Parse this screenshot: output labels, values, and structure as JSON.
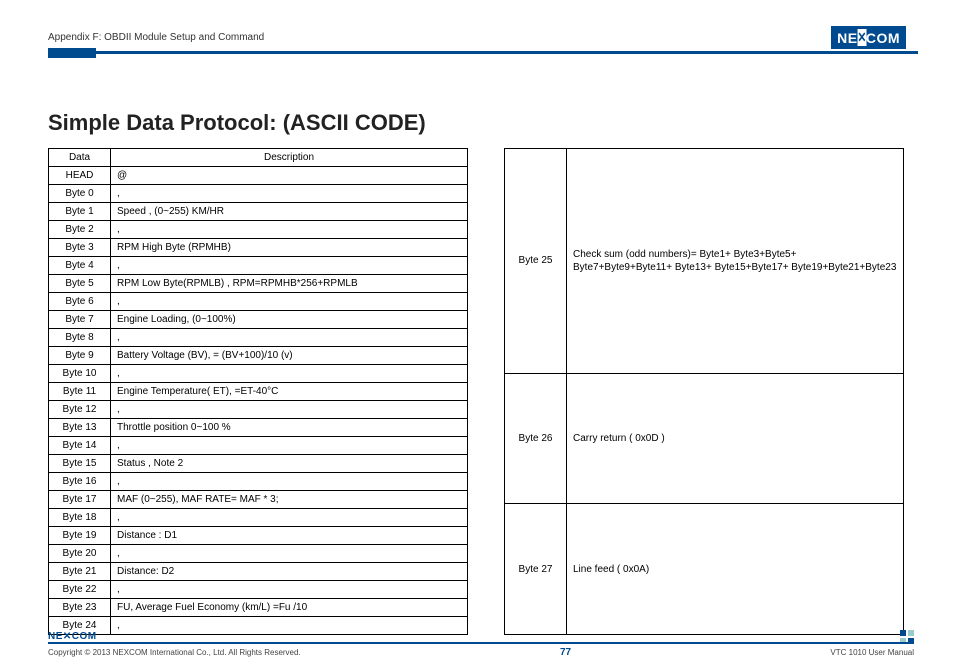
{
  "header": {
    "appendix": "Appendix F: OBDII Module Setup and Command",
    "logo_text_a": "NE",
    "logo_text_b": "COM"
  },
  "title": "Simple Data Protocol: (ASCII CODE)",
  "table1": {
    "head_left": "Data",
    "head_right": "Description",
    "rows": [
      [
        "HEAD",
        "@"
      ],
      [
        "Byte 0",
        ","
      ],
      [
        "Byte 1",
        "Speed , (0~255) KM/HR"
      ],
      [
        "Byte 2",
        ","
      ],
      [
        "Byte 3",
        "RPM High Byte (RPMHB)"
      ],
      [
        "Byte 4",
        ","
      ],
      [
        "Byte 5",
        "RPM Low Byte(RPMLB) , RPM=RPMHB*256+RPMLB"
      ],
      [
        "Byte 6",
        ","
      ],
      [
        "Byte 7",
        "Engine Loading, (0~100%)"
      ],
      [
        "Byte 8",
        ","
      ],
      [
        "Byte 9",
        "Battery Voltage (BV), = (BV+100)/10 (v)"
      ],
      [
        "Byte 10",
        ","
      ],
      [
        "Byte 11",
        "Engine Temperature( ET), =ET-40°C"
      ],
      [
        "Byte 12",
        ","
      ],
      [
        "Byte 13",
        "Throttle position 0~100 %"
      ],
      [
        "Byte 14",
        ","
      ],
      [
        "Byte 15",
        "Status , Note 2"
      ],
      [
        "Byte 16",
        ","
      ],
      [
        "Byte 17",
        "MAF (0~255), MAF RATE= MAF * 3;"
      ],
      [
        "Byte 18",
        ","
      ],
      [
        "Byte 19",
        "Distance : D1"
      ],
      [
        "Byte 20",
        ","
      ],
      [
        "Byte 21",
        "Distance: D2"
      ],
      [
        "Byte 22",
        ","
      ],
      [
        "Byte 23",
        "FU, Average Fuel Economy (km/L) =Fu /10"
      ],
      [
        "Byte 24",
        ","
      ]
    ]
  },
  "table2": {
    "rows": [
      [
        "Byte 25",
        "Check sum (odd numbers)= Byte1+ Byte3+Byte5+ Byte7+Byte9+Byte11+ Byte13+ Byte15+Byte17+ Byte19+Byte21+Byte23"
      ],
      [
        "Byte 26",
        "Carry return ( 0x0D )"
      ],
      [
        "Byte 27",
        "Line feed ( 0x0A)"
      ]
    ]
  },
  "footer": {
    "logo_a": "NE",
    "logo_b": "COM",
    "copyright": "Copyright © 2013 NEXCOM International Co., Ltd. All Rights Reserved.",
    "page": "77",
    "manual": "VTC 1010 User Manual"
  }
}
